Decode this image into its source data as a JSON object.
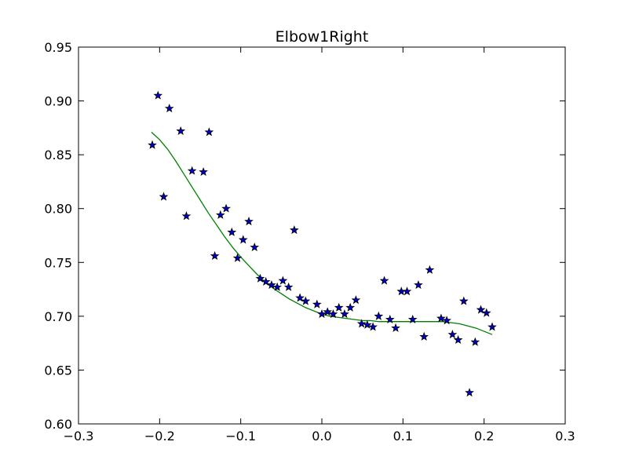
{
  "chart_data": {
    "type": "scatter",
    "title": "Elbow1Right",
    "xlabel": "",
    "ylabel": "",
    "xlim": [
      -0.3,
      0.3
    ],
    "ylim": [
      0.6,
      0.95
    ],
    "x_ticks": [
      -0.3,
      -0.2,
      -0.1,
      0.0,
      0.1,
      0.2,
      0.3
    ],
    "x_tick_labels": [
      "−0.3",
      "−0.2",
      "−0.1",
      "0.0",
      "0.1",
      "0.2",
      "0.3"
    ],
    "y_ticks": [
      0.6,
      0.65,
      0.7,
      0.75,
      0.8,
      0.85,
      0.9,
      0.95
    ],
    "y_tick_labels": [
      "0.60",
      "0.65",
      "0.70",
      "0.75",
      "0.80",
      "0.85",
      "0.90",
      "0.95"
    ],
    "grid": false,
    "series": [
      {
        "kind": "scatter",
        "marker": "star",
        "color": "#0000cc",
        "points": [
          [
            -0.209,
            0.859
          ],
          [
            -0.202,
            0.905
          ],
          [
            -0.195,
            0.811
          ],
          [
            -0.188,
            0.893
          ],
          [
            -0.174,
            0.872
          ],
          [
            -0.167,
            0.793
          ],
          [
            -0.16,
            0.835
          ],
          [
            -0.146,
            0.834
          ],
          [
            -0.139,
            0.871
          ],
          [
            -0.132,
            0.756
          ],
          [
            -0.125,
            0.794
          ],
          [
            -0.118,
            0.8
          ],
          [
            -0.111,
            0.778
          ],
          [
            -0.104,
            0.754
          ],
          [
            -0.097,
            0.771
          ],
          [
            -0.09,
            0.788
          ],
          [
            -0.083,
            0.764
          ],
          [
            -0.076,
            0.735
          ],
          [
            -0.069,
            0.732
          ],
          [
            -0.062,
            0.729
          ],
          [
            -0.055,
            0.727
          ],
          [
            -0.048,
            0.733
          ],
          [
            -0.041,
            0.727
          ],
          [
            -0.034,
            0.78
          ],
          [
            -0.027,
            0.717
          ],
          [
            -0.02,
            0.714
          ],
          [
            -0.006,
            0.711
          ],
          [
            0.0,
            0.702
          ],
          [
            0.007,
            0.704
          ],
          [
            0.014,
            0.702
          ],
          [
            0.021,
            0.708
          ],
          [
            0.028,
            0.702
          ],
          [
            0.035,
            0.708
          ],
          [
            0.042,
            0.715
          ],
          [
            0.049,
            0.693
          ],
          [
            0.056,
            0.692
          ],
          [
            0.063,
            0.69
          ],
          [
            0.07,
            0.7
          ],
          [
            0.077,
            0.733
          ],
          [
            0.084,
            0.697
          ],
          [
            0.091,
            0.689
          ],
          [
            0.098,
            0.723
          ],
          [
            0.105,
            0.723
          ],
          [
            0.112,
            0.697
          ],
          [
            0.119,
            0.729
          ],
          [
            0.126,
            0.681
          ],
          [
            0.133,
            0.743
          ],
          [
            0.147,
            0.698
          ],
          [
            0.154,
            0.696
          ],
          [
            0.161,
            0.683
          ],
          [
            0.168,
            0.678
          ],
          [
            0.175,
            0.714
          ],
          [
            0.182,
            0.629
          ],
          [
            0.189,
            0.676
          ],
          [
            0.196,
            0.706
          ],
          [
            0.203,
            0.703
          ],
          [
            0.21,
            0.69
          ]
        ]
      },
      {
        "kind": "line",
        "color": "#008000",
        "points": [
          [
            -0.21,
            0.871
          ],
          [
            -0.2,
            0.864
          ],
          [
            -0.19,
            0.855
          ],
          [
            -0.18,
            0.844
          ],
          [
            -0.17,
            0.832
          ],
          [
            -0.16,
            0.82
          ],
          [
            -0.15,
            0.808
          ],
          [
            -0.14,
            0.796
          ],
          [
            -0.13,
            0.785
          ],
          [
            -0.12,
            0.774
          ],
          [
            -0.11,
            0.764
          ],
          [
            -0.1,
            0.755
          ],
          [
            -0.09,
            0.747
          ],
          [
            -0.08,
            0.739
          ],
          [
            -0.07,
            0.732
          ],
          [
            -0.06,
            0.726
          ],
          [
            -0.05,
            0.721
          ],
          [
            -0.04,
            0.716
          ],
          [
            -0.03,
            0.712
          ],
          [
            -0.02,
            0.708
          ],
          [
            -0.01,
            0.705
          ],
          [
            0.0,
            0.702
          ],
          [
            0.01,
            0.7
          ],
          [
            0.02,
            0.699
          ],
          [
            0.03,
            0.698
          ],
          [
            0.04,
            0.697
          ],
          [
            0.05,
            0.696
          ],
          [
            0.06,
            0.696
          ],
          [
            0.07,
            0.695
          ],
          [
            0.08,
            0.695
          ],
          [
            0.09,
            0.695
          ],
          [
            0.1,
            0.695
          ],
          [
            0.11,
            0.695
          ],
          [
            0.12,
            0.695
          ],
          [
            0.13,
            0.695
          ],
          [
            0.14,
            0.695
          ],
          [
            0.15,
            0.695
          ],
          [
            0.16,
            0.694
          ],
          [
            0.17,
            0.693
          ],
          [
            0.18,
            0.691
          ],
          [
            0.19,
            0.689
          ],
          [
            0.2,
            0.686
          ],
          [
            0.21,
            0.683
          ]
        ]
      }
    ]
  }
}
